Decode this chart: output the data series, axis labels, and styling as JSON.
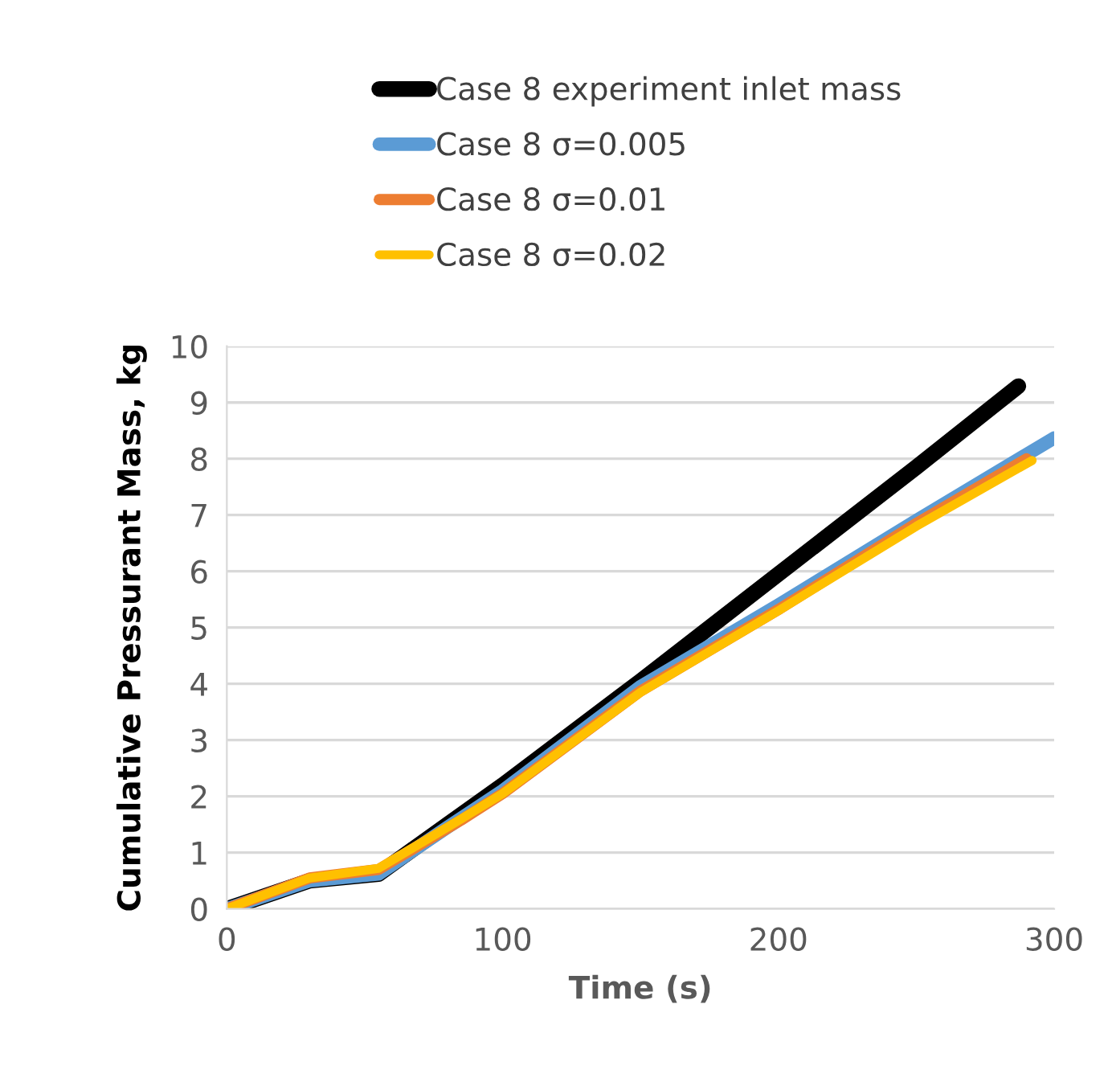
{
  "chart_data": {
    "type": "line",
    "xlabel": "Time (s)",
    "ylabel": "Cumulative Pressurant Mass, kg",
    "xlim": [
      0,
      300
    ],
    "xticks": [
      0,
      100,
      200,
      300
    ],
    "ylim": [
      0,
      10
    ],
    "yticks": [
      0,
      1,
      2,
      3,
      4,
      5,
      6,
      7,
      8,
      9,
      10
    ],
    "grid": "y",
    "legend": "top",
    "marker": "none",
    "line_style": "solid",
    "series": [
      {
        "name": "Case 8 experiment inlet mass",
        "color": "#000000",
        "x": [
          0,
          30,
          55,
          80,
          100,
          150,
          200,
          250,
          287
        ],
        "values": [
          0,
          0.5,
          0.62,
          1.5,
          2.2,
          4.05,
          5.95,
          7.85,
          9.29
        ]
      },
      {
        "name": "Case 8 σ=0.005",
        "color": "#5b9bd5",
        "x": [
          0,
          30,
          55,
          80,
          100,
          150,
          200,
          250,
          300
        ],
        "values": [
          0,
          0.5,
          0.62,
          1.45,
          2.1,
          3.95,
          5.4,
          6.9,
          8.37
        ]
      },
      {
        "name": "Case 8 σ=0.01",
        "color": "#ed7d31",
        "x": [
          0,
          30,
          55,
          85,
          100,
          150,
          200,
          250,
          290
        ],
        "values": [
          0,
          0.55,
          0.7,
          1.58,
          2.05,
          3.87,
          5.32,
          6.85,
          8.0
        ]
      },
      {
        "name": "Case 8 σ=0.02",
        "color": "#ffc000",
        "x": [
          0,
          30,
          55,
          85,
          100,
          150,
          200,
          250,
          292
        ],
        "values": [
          0,
          0.55,
          0.72,
          1.6,
          2.05,
          3.85,
          5.3,
          6.8,
          7.97
        ]
      }
    ]
  }
}
